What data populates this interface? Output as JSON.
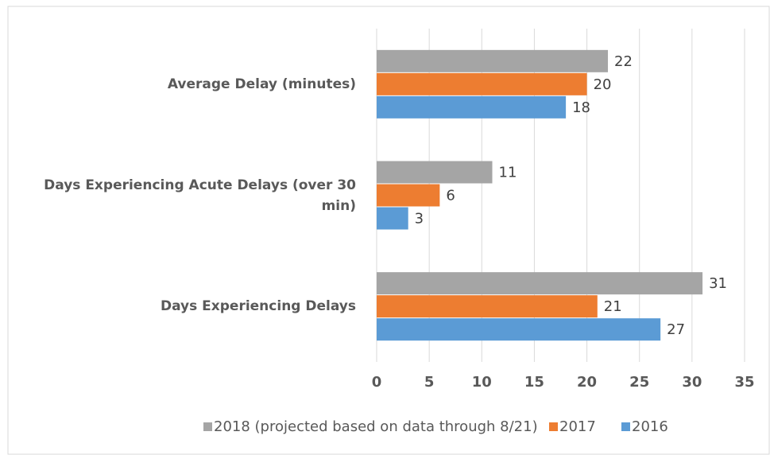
{
  "chart_data": {
    "type": "bar",
    "orientation": "horizontal",
    "categories": [
      "Average Delay (minutes)",
      "Days Experiencing Acute Delays (over 30 min)",
      "Days Experiencing  Delays"
    ],
    "series": [
      {
        "name": "2018 (projected based on data through 8/21)",
        "color": "#a5a5a5",
        "values": [
          22,
          11,
          31
        ]
      },
      {
        "name": "2017",
        "color": "#ed7d31",
        "values": [
          20,
          6,
          21
        ]
      },
      {
        "name": "2016",
        "color": "#5b9bd5",
        "values": [
          18,
          3,
          27
        ]
      }
    ],
    "xlim": [
      0,
      35
    ],
    "xticks": [
      0,
      5,
      10,
      15,
      20,
      25,
      30,
      35
    ],
    "grid": true,
    "legend": "bottom"
  }
}
